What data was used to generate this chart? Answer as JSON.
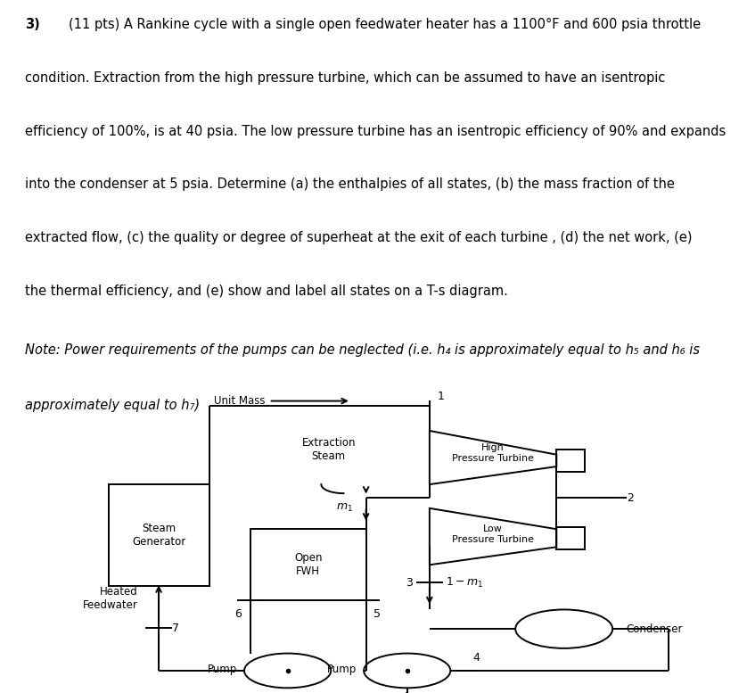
{
  "bg_color": "#ffffff",
  "text_color": "#000000",
  "line1": "3)  (11 pts) A Rankine cycle with a single open feedwater heater has a 1100°F and 600 psia throttle",
  "line2": "condition. Extraction from the high pressure turbine, which can be assumed to have an isentropic",
  "line3": "efficiency of 100%, is at 40 psia. The low pressure turbine has an isentropic efficiency of 90% and expands",
  "line4": "into the condenser at 5 psia. Determine (a) the enthalpies of all states, (b) the mass fraction of the",
  "line5": "extracted flow, (c) the quality or degree of superheat at the exit of each turbine , (d) the net work, (e)",
  "line6": "the thermal efficiency, and (e) show and label all states on a T-s diagram.",
  "note1": "Note: Power requirements of the pumps can be neglected (i.e. h₄ is approximately equal to h₅ and h₆ is",
  "note2": "approximately equal to h₇)",
  "lw": 1.4,
  "font_size_text": 10.5,
  "font_size_label": 8.5,
  "font_size_state": 9.0
}
